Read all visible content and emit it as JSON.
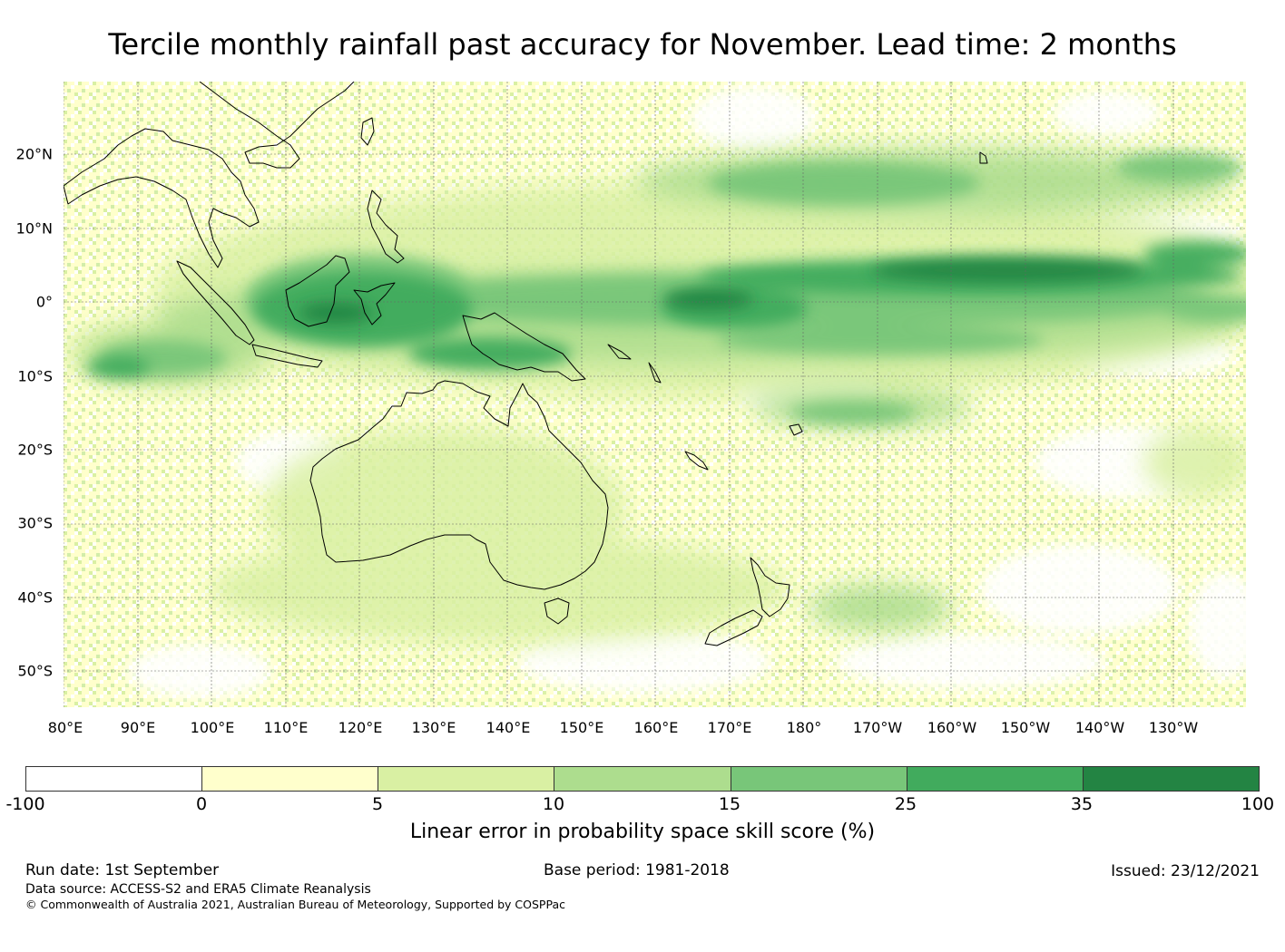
{
  "title": "Tercile monthly rainfall past accuracy for November. Lead time: 2 months",
  "map": {
    "lat_labels": [
      "20°N",
      "10°N",
      "0°",
      "10°S",
      "20°S",
      "30°S",
      "40°S",
      "50°S"
    ],
    "lon_labels": [
      "80°E",
      "90°E",
      "100°E",
      "110°E",
      "120°E",
      "130°E",
      "140°E",
      "150°E",
      "160°E",
      "170°E",
      "180°",
      "170°W",
      "160°W",
      "150°W",
      "140°W",
      "130°W"
    ],
    "regions": [
      "Australia",
      "New Zealand",
      "Indonesia",
      "Papua New Guinea",
      "Philippines",
      "Southeast Asia",
      "Hawaii",
      "Fiji",
      "New Caledonia"
    ]
  },
  "colorbar": {
    "ticks": [
      "-100",
      "0",
      "5",
      "10",
      "15",
      "25",
      "35",
      "100"
    ],
    "colors": [
      "#ffffff",
      "#ffffcc",
      "#d9f0a3",
      "#addd8e",
      "#78c679",
      "#41ab5d",
      "#238443"
    ],
    "label": "Linear error in probability space skill score (%)"
  },
  "footer": {
    "run_date": "Run date: 1st September",
    "base_period": "Base period: 1981-2018",
    "issued": "Issued: 23/12/2021",
    "data_source": "Data source: ACCESS-S2 and ERA5 Climate Reanalysis",
    "copyright": "© Commonwealth of Australia 2021, Australian Bureau of Meteorology, Supported by COSPPac"
  }
}
